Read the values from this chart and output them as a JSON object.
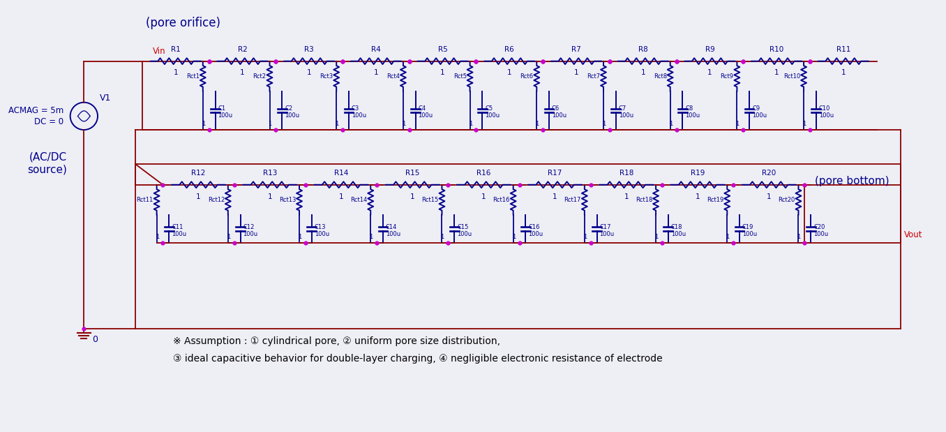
{
  "bg_color": "#eeeef5",
  "wire_color": "#8b0000",
  "comp_color": "#00008b",
  "node_color": "#cc00cc",
  "blue": "#00008b",
  "red_text": "#cc0000",
  "label_pore_orifice": "(pore orifice)",
  "label_pore_bottom": "(pore bottom)",
  "label_source_line1": "(AC/DC",
  "label_source_line2": "source)",
  "label_vin": "Vin",
  "label_vout": "Vout",
  "label_v1": "V1",
  "label_acmag_line1": "ACMAG = 5m",
  "label_acmag_line2": "DC = 0",
  "label_ground": "0",
  "assumption1": "※ Assumption : ① cylindrical pore, ② uniform pore size distribution,",
  "assumption2": "③ ideal capacitive behavior for double-layer charging, ④ negligible electronic resistance of electrode",
  "row1_R": [
    "R1",
    "R2",
    "R3",
    "R4",
    "R5",
    "R6",
    "R7",
    "R8",
    "R9",
    "R10",
    "R11"
  ],
  "row1_Rct": [
    "Rct1",
    "Rct2",
    "Rct3",
    "Rct4",
    "Rct5",
    "Rct6",
    "Rct7",
    "Rct8",
    "Rct9",
    "Rct10"
  ],
  "row1_C": [
    "C1",
    "C2",
    "C3",
    "C4",
    "C5",
    "C6",
    "C7",
    "C8",
    "C9",
    "C10"
  ],
  "row2_R": [
    "R12",
    "R13",
    "R14",
    "R15",
    "R16",
    "R17",
    "R18",
    "R19",
    "R20"
  ],
  "row2_Rct": [
    "Rct11",
    "Rct12",
    "Rct13",
    "Rct14",
    "Rct15",
    "Rct16",
    "Rct17",
    "Rct18",
    "Rct19",
    "Rct20"
  ],
  "row2_C": [
    "C11",
    "C12",
    "C13",
    "C14",
    "C15",
    "C16",
    "C17",
    "C18",
    "C19",
    "C20"
  ]
}
